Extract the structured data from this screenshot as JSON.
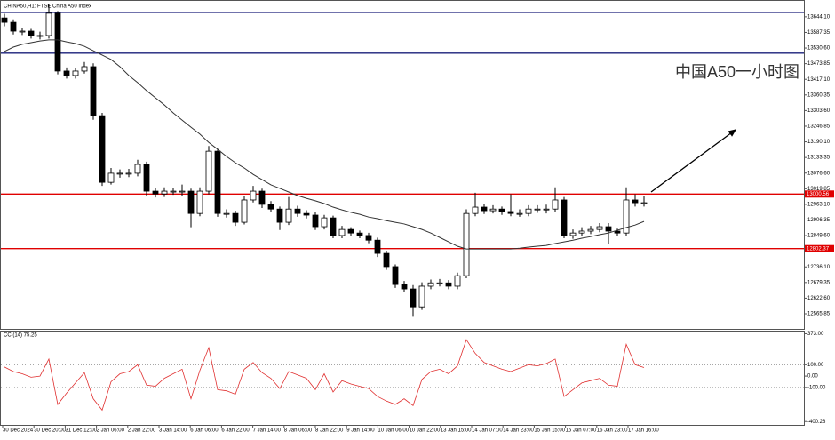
{
  "chart_data": {
    "type": "candlestick",
    "title": "CHINA50,H1: FTSE China A50 Index",
    "annotation": "中国A50一小时图",
    "bull_color": "#ffffff",
    "bear_color": "#000000",
    "ylim": [
      12511,
      13705
    ],
    "yticks": [
      {
        "value": 13644.1,
        "label": "13644.10"
      },
      {
        "value": 13587.35,
        "label": "13587.35"
      },
      {
        "value": 13530.6,
        "label": "13530.60"
      },
      {
        "value": 13473.85,
        "label": "13473.85"
      },
      {
        "value": 13417.1,
        "label": "13417.10"
      },
      {
        "value": 13360.35,
        "label": "13360.35"
      },
      {
        "value": 13303.6,
        "label": "13303.60"
      },
      {
        "value": 13246.85,
        "label": "13246.85"
      },
      {
        "value": 13190.1,
        "label": "13190.10"
      },
      {
        "value": 13133.35,
        "label": "13133.35"
      },
      {
        "value": 13076.6,
        "label": "13076.60"
      },
      {
        "value": 13019.85,
        "label": "13019.85"
      },
      {
        "value": 12963.1,
        "label": "12963.10"
      },
      {
        "value": 12906.35,
        "label": "12906.35"
      },
      {
        "value": 12849.6,
        "label": "12849.60"
      },
      {
        "value": 12736.1,
        "label": "12736.10"
      },
      {
        "value": 12679.35,
        "label": "12679.35"
      },
      {
        "value": 12622.6,
        "label": "12622.60"
      },
      {
        "value": 12565.85,
        "label": "12565.85"
      }
    ],
    "levels": [
      {
        "value": 13660,
        "color": "#1a1f7a"
      },
      {
        "value": 13512,
        "color": "#1a1f7a"
      },
      {
        "value": 13000.56,
        "label": "13000.56",
        "color": "#e00000"
      },
      {
        "value": 12802.37,
        "label": "12802.37",
        "color": "#e00000"
      }
    ],
    "x_labels": [
      "30 Dec 2024",
      "30 Dec 20:00",
      "31 Dec 12:00",
      "2 Jan 06:00",
      "2 Jan 22:00",
      "3 Jan 14:00",
      "6 Jan 06:00",
      "6 Jan 22:00",
      "7 Jan 14:00",
      "8 Jan 06:00",
      "8 Jan 22:00",
      "9 Jan 14:00",
      "10 Jan 06:00",
      "10 Jan 22:00",
      "13 Jan 15:00",
      "14 Jan 07:00",
      "14 Jan 23:00",
      "15 Jan 15:00",
      "16 Jan 07:00",
      "16 Jan 23:00",
      "17 Jan 16:00"
    ],
    "open": [
      13640,
      13624,
      13592,
      13592,
      13576,
      13576,
      13657,
      13447,
      13431,
      13447,
      13463,
      13285,
      13043,
      13076,
      13076,
      13076,
      13108,
      13011,
      13001,
      13011,
      13011,
      13011,
      12930,
      13011,
      13156,
      12930,
      12930,
      12898,
      12979,
      13011,
      12963,
      12946,
      12898,
      12946,
      12930,
      12924,
      12882,
      12914,
      12850,
      12872,
      12859,
      12850,
      12833,
      12785,
      12737,
      12672,
      12656,
      12591,
      12666,
      12678,
      12678,
      12666,
      12704,
      12930,
      12953,
      12940,
      12946,
      12937,
      12930,
      12930,
      12946,
      12946,
      12946,
      12979,
      12850,
      12859,
      12866,
      12872,
      12882,
      12866,
      12859,
      12979,
      12969
    ],
    "high": [
      13655,
      13635,
      13605,
      13600,
      13590,
      13690,
      13665,
      13460,
      13458,
      13480,
      13475,
      13295,
      13095,
      13090,
      13092,
      13125,
      13118,
      13022,
      13025,
      13024,
      13035,
      13020,
      13025,
      13175,
      13165,
      12945,
      12940,
      12992,
      13030,
      13020,
      12975,
      12955,
      12990,
      12958,
      12942,
      12935,
      12925,
      12922,
      12885,
      12880,
      12868,
      12860,
      12842,
      12795,
      12745,
      12685,
      12670,
      12680,
      12690,
      12692,
      12688,
      12715,
      12945,
      13005,
      12965,
      12960,
      12955,
      13000,
      12945,
      12960,
      12960,
      12962,
      13025,
      12990,
      12872,
      12880,
      12885,
      12895,
      12895,
      12875,
      13025,
      13000,
      12995
    ],
    "low": [
      13610,
      13580,
      13578,
      13565,
      13562,
      13565,
      13435,
      13420,
      13420,
      13438,
      13270,
      13030,
      13035,
      13060,
      13062,
      13065,
      12995,
      12988,
      12990,
      12998,
      12995,
      12880,
      12920,
      13000,
      12918,
      12915,
      12885,
      12890,
      12970,
      12950,
      12935,
      12870,
      12888,
      12918,
      12912,
      12870,
      12872,
      12840,
      12840,
      12848,
      12840,
      12822,
      12772,
      12725,
      12660,
      12645,
      12555,
      12580,
      12655,
      12665,
      12655,
      12655,
      12695,
      12920,
      12928,
      12930,
      12925,
      12920,
      12918,
      12920,
      12932,
      12930,
      12935,
      12840,
      12838,
      12848,
      12855,
      12862,
      12820,
      12848,
      12850,
      12955,
      12955
    ],
    "close": [
      13624,
      13592,
      13592,
      13576,
      13576,
      13657,
      13447,
      13431,
      13447,
      13463,
      13285,
      13043,
      13076,
      13076,
      13076,
      13108,
      13011,
      13001,
      13011,
      13011,
      13011,
      12930,
      13011,
      13156,
      12930,
      12930,
      12898,
      12979,
      13011,
      12963,
      12946,
      12898,
      12946,
      12930,
      12924,
      12882,
      12914,
      12850,
      12872,
      12859,
      12850,
      12833,
      12785,
      12737,
      12672,
      12656,
      12591,
      12666,
      12678,
      12678,
      12666,
      12704,
      12930,
      12953,
      12940,
      12946,
      12937,
      12930,
      12930,
      12946,
      12946,
      12946,
      12979,
      12850,
      12859,
      12866,
      12872,
      12882,
      12866,
      12859,
      12979,
      12969,
      12969
    ],
    "ma": {
      "color": "#333333",
      "values": [
        13518,
        13534,
        13544,
        13550,
        13556,
        13560,
        13560,
        13553,
        13547,
        13537,
        13521,
        13505,
        13489,
        13463,
        13431,
        13405,
        13376,
        13350,
        13324,
        13295,
        13269,
        13243,
        13218,
        13188,
        13163,
        13137,
        13114,
        13095,
        13072,
        13053,
        13034,
        13021,
        13008,
        12995,
        12985,
        12976,
        12966,
        12953,
        12943,
        12934,
        12927,
        12917,
        12911,
        12904,
        12898,
        12892,
        12882,
        12872,
        12859,
        12843,
        12827,
        12811,
        12801,
        12801,
        12801,
        12801,
        12801,
        12801,
        12804,
        12808,
        12811,
        12814,
        12821,
        12827,
        12833,
        12840,
        12846,
        12853,
        12859,
        12869,
        12879,
        12888,
        12901
      ]
    },
    "indicator": {
      "label": "CCI(14) 75.25",
      "color": "#e03030",
      "ylim": [
        -430,
        400
      ],
      "yticks": [
        {
          "value": 373,
          "label": "373.00"
        },
        {
          "value": 100,
          "label": "100.00"
        },
        {
          "value": 0,
          "label": "0.00"
        },
        {
          "value": -100,
          "label": "-100.00"
        },
        {
          "value": -400.28,
          "label": "-400.28"
        }
      ],
      "levels": [
        100,
        -100
      ],
      "values": [
        80,
        40,
        20,
        -10,
        0,
        150,
        -250,
        -150,
        -60,
        30,
        -200,
        -300,
        -50,
        20,
        40,
        100,
        -80,
        -90,
        -20,
        20,
        60,
        -200,
        50,
        250,
        -120,
        -130,
        -160,
        60,
        120,
        30,
        -20,
        -110,
        40,
        10,
        -20,
        -120,
        20,
        -140,
        -40,
        -70,
        -90,
        -110,
        -180,
        -220,
        -250,
        -200,
        -260,
        -30,
        40,
        60,
        20,
        90,
        320,
        200,
        120,
        90,
        60,
        40,
        70,
        100,
        90,
        110,
        150,
        -180,
        -120,
        -60,
        -40,
        -20,
        -80,
        -90,
        280,
        100,
        75.25
      ]
    }
  }
}
